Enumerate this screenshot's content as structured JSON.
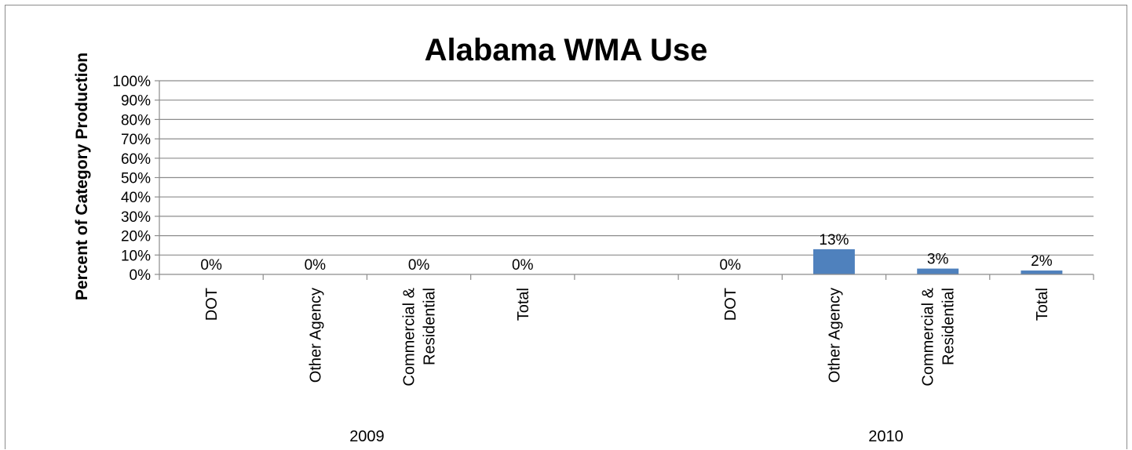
{
  "chart_data": {
    "type": "bar",
    "title": "Alabama WMA Use",
    "xlabel": "",
    "ylabel": "Percent of Category Production",
    "ylim": [
      0,
      100
    ],
    "yticks": [
      "0%",
      "10%",
      "20%",
      "30%",
      "40%",
      "50%",
      "60%",
      "70%",
      "80%",
      "90%",
      "100%"
    ],
    "grid": true,
    "legend": "none",
    "bar_color": "#4f81bd",
    "groups": [
      {
        "label": "2009",
        "categories": [
          "DOT",
          "Other Agency",
          "Commercial &\nResidential",
          "Total"
        ],
        "values": [
          0,
          0,
          0,
          0
        ],
        "data_labels": [
          "0%",
          "0%",
          "0%",
          "0%"
        ]
      },
      {
        "label": "2010",
        "categories": [
          "DOT",
          "Other Agency",
          "Commercial &\nResidential",
          "Total"
        ],
        "values": [
          0,
          13,
          3,
          2
        ],
        "data_labels": [
          "0%",
          "13%",
          "3%",
          "2%"
        ]
      }
    ]
  }
}
